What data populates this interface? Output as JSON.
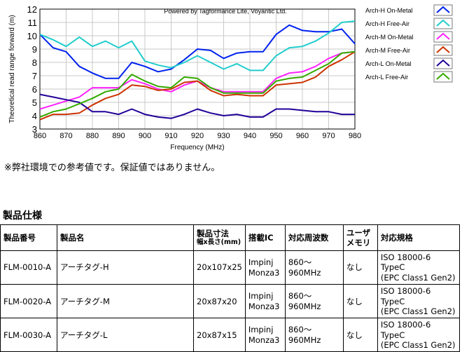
{
  "chart_data": {
    "type": "line",
    "credit": "Powered by Tagformance Lite, Voyantic Ltd.",
    "xlabel": "Frequency (MHz)",
    "ylabel": "Theoretical read range forward (m)",
    "xlim": [
      860,
      980
    ],
    "ylim": [
      3,
      12
    ],
    "x_ticks": [
      860,
      870,
      880,
      890,
      900,
      910,
      920,
      930,
      940,
      950,
      960,
      970,
      980
    ],
    "y_ticks": [
      3,
      4,
      5,
      6,
      7,
      8,
      9,
      10,
      11,
      12
    ],
    "grid": true,
    "legend_position": "right",
    "x": [
      860,
      865,
      870,
      875,
      880,
      885,
      890,
      895,
      900,
      905,
      910,
      915,
      920,
      925,
      930,
      935,
      940,
      945,
      950,
      955,
      960,
      965,
      970,
      975,
      980
    ],
    "series": [
      {
        "name": "Arch-H On-Metal",
        "color": "#0022ee",
        "values": [
          10.1,
          9.1,
          8.8,
          7.7,
          7.2,
          6.8,
          6.8,
          8.0,
          7.7,
          7.3,
          7.5,
          8.2,
          9.0,
          8.9,
          8.3,
          8.7,
          8.8,
          8.8,
          10.1,
          10.8,
          10.4,
          10.3,
          10.3,
          10.5,
          9.4
        ]
      },
      {
        "name": "Arch-H Free-Air",
        "color": "#22cccc",
        "values": [
          10.1,
          9.7,
          9.2,
          9.9,
          9.2,
          9.6,
          9.1,
          9.6,
          8.1,
          7.8,
          7.6,
          8.0,
          8.5,
          8.0,
          7.5,
          7.9,
          7.4,
          7.4,
          8.5,
          9.1,
          9.2,
          9.6,
          10.2,
          11.0,
          11.1
        ]
      },
      {
        "name": "Arch-M On-Metal",
        "color": "#ff22ff",
        "values": [
          4.5,
          4.8,
          5.1,
          5.4,
          6.1,
          6.1,
          6.1,
          6.7,
          6.4,
          6.0,
          5.8,
          6.3,
          6.6,
          6.1,
          5.8,
          5.8,
          5.8,
          5.8,
          6.8,
          7.2,
          7.3,
          7.7,
          8.3,
          8.7,
          8.8
        ]
      },
      {
        "name": "Arch-M Free-Air",
        "color": "#cc3300",
        "values": [
          3.7,
          4.1,
          4.1,
          4.2,
          4.8,
          5.3,
          5.6,
          6.3,
          6.2,
          5.9,
          6.0,
          6.5,
          6.6,
          5.9,
          5.5,
          5.6,
          5.5,
          5.5,
          6.3,
          6.4,
          6.5,
          6.9,
          7.7,
          8.2,
          8.8
        ]
      },
      {
        "name": "Arch-L On-Metal",
        "color": "#220099",
        "values": [
          5.6,
          5.4,
          5.2,
          5.0,
          4.3,
          4.3,
          4.1,
          4.5,
          4.1,
          3.9,
          3.8,
          4.1,
          4.5,
          4.2,
          4.0,
          4.1,
          3.9,
          3.9,
          4.5,
          4.5,
          4.4,
          4.3,
          4.3,
          4.1,
          4.1
        ]
      },
      {
        "name": "Arch-L Free-Air",
        "color": "#33aa00",
        "values": [
          3.9,
          4.3,
          4.5,
          4.9,
          5.3,
          5.8,
          6.0,
          7.1,
          6.6,
          6.2,
          6.1,
          6.9,
          6.8,
          6.1,
          5.7,
          5.7,
          5.7,
          5.7,
          6.6,
          6.8,
          6.9,
          7.4,
          7.9,
          8.7,
          8.8
        ]
      }
    ]
  },
  "note": "※弊社環境での参考値です。保証値ではありません。",
  "spec": {
    "title": "製品仕様",
    "headers": {
      "number": "製品番号",
      "name": "製品名",
      "size": "製品寸法",
      "size_sub": "幅x長さ(mm)",
      "ic": "搭載IC",
      "freq": "対応周波数",
      "memory_1": "ユーザ",
      "memory_2": "メモリ",
      "standard": "対応規格"
    },
    "rows": [
      {
        "number": "FLM-0010-A",
        "name": "アーチタグ-H",
        "size": "20x107x25",
        "ic_1": "Impinj",
        "ic_2": "Monza3",
        "freq": "860～960MHz",
        "memory": "なし",
        "std_1": "ISO 18000-6 TypeC",
        "std_2": "(EPC Class1 Gen2)"
      },
      {
        "number": "FLM-0020-A",
        "name": "アーチタグ-M",
        "size": "20x87x20",
        "ic_1": "Impinj",
        "ic_2": "Monza3",
        "freq": "860～960MHz",
        "memory": "なし",
        "std_1": "ISO 18000-6 TypeC",
        "std_2": "(EPC Class1 Gen2)"
      },
      {
        "number": "FLM-0030-A",
        "name": "アーチタグ-L",
        "size": "20x87x15",
        "ic_1": "Impinj",
        "ic_2": "Monza3",
        "freq": "860～960MHz",
        "memory": "なし",
        "std_1": "ISO 18000-6 TypeC",
        "std_2": "(EPC Class1 Gen2)"
      }
    ]
  }
}
